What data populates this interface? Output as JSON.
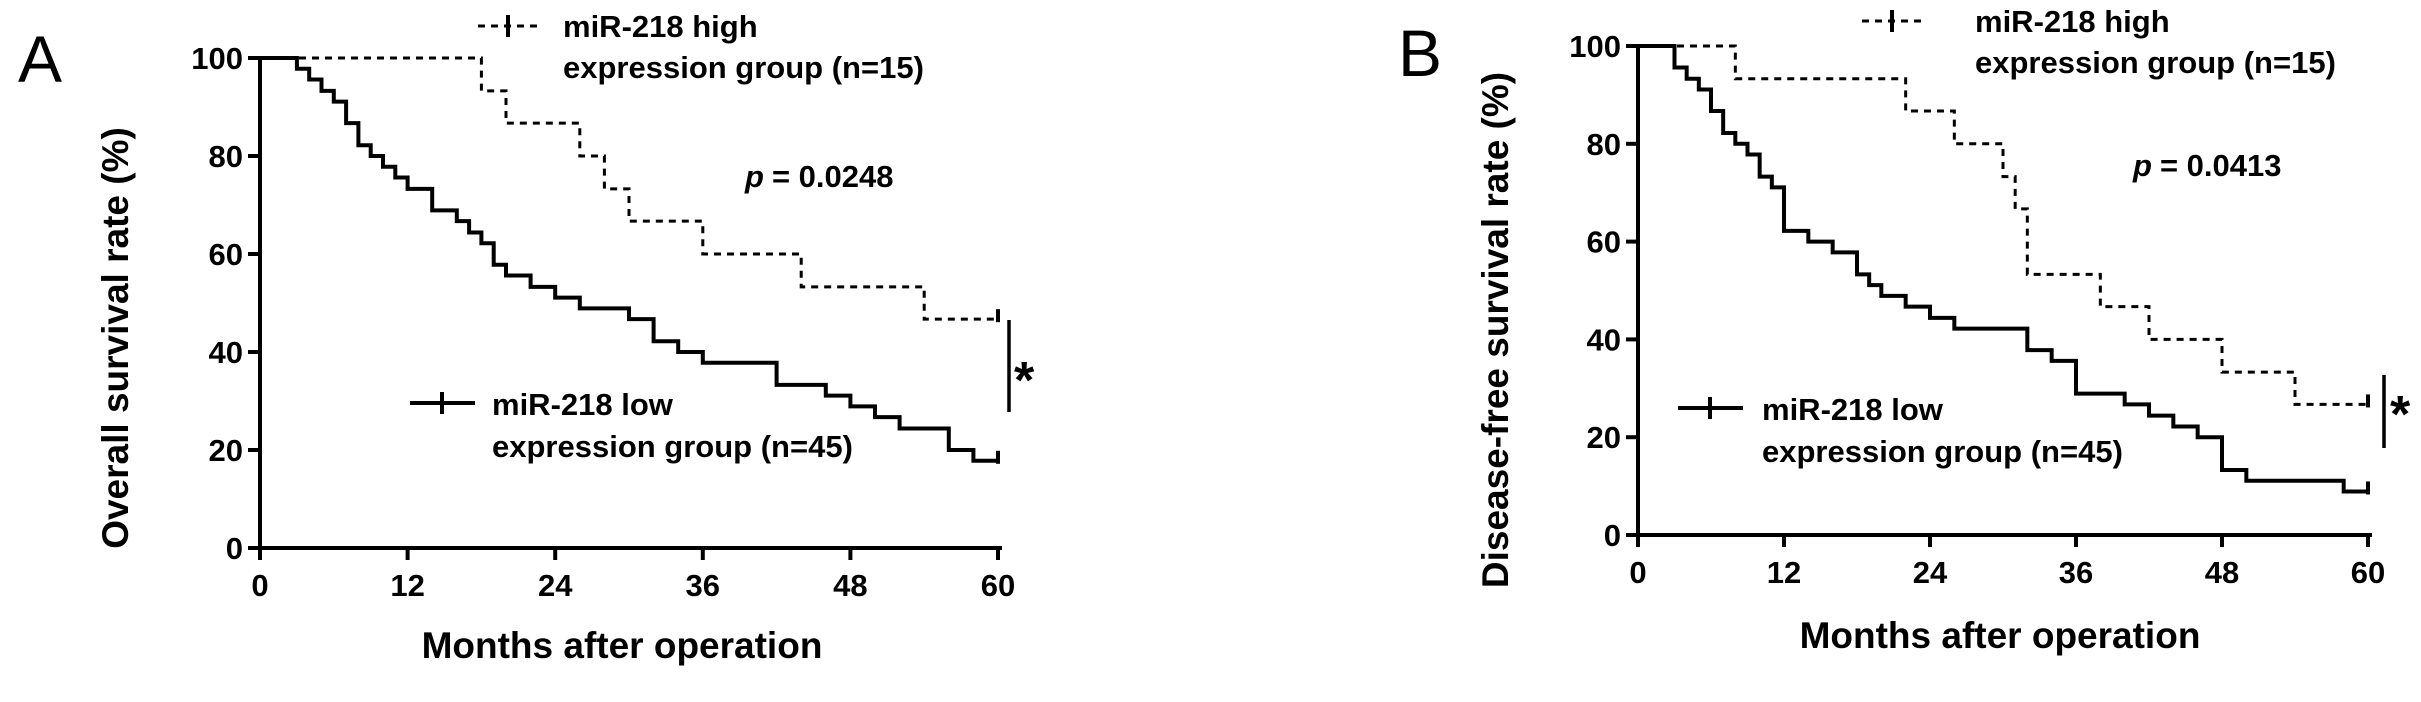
{
  "chart_data": [
    {
      "type": "line",
      "panel_label": "A",
      "xlabel": "Months after operation",
      "ylabel": "Overall survival rate (%)",
      "xlim": [
        0,
        60
      ],
      "ylim": [
        0,
        100
      ],
      "xticks": [
        0,
        12,
        24,
        36,
        48,
        60
      ],
      "yticks": [
        0,
        20,
        40,
        60,
        80,
        100
      ],
      "grid": false,
      "p_label": "p",
      "p_value": "= 0.0248",
      "significance": "*",
      "series": [
        {
          "name": "miR-218 high expression group (n=15)",
          "legend_lines": [
            "miR-218 high",
            "expression group (n=15)"
          ],
          "style": "dashed",
          "x": [
            0,
            18,
            20,
            26,
            28,
            30,
            36,
            44,
            54,
            60
          ],
          "y": [
            100,
            93.3,
            86.7,
            80,
            73.3,
            66.7,
            60,
            53.3,
            46.7,
            46.7
          ]
        },
        {
          "name": "miR-218 low expression group (n=45)",
          "legend_lines": [
            "miR-218 low",
            "expression group (n=45)"
          ],
          "style": "solid",
          "x": [
            0,
            3,
            4,
            5,
            6,
            7,
            8,
            9,
            10,
            11,
            12,
            14,
            16,
            17,
            18,
            19,
            20,
            22,
            24,
            26,
            30,
            32,
            34,
            36,
            42,
            46,
            48,
            50,
            52,
            56,
            58,
            60
          ],
          "y": [
            100,
            97.8,
            95.6,
            93.3,
            91.1,
            86.7,
            82.2,
            80,
            77.8,
            75.6,
            73.3,
            68.9,
            66.7,
            64.4,
            62.2,
            57.8,
            55.6,
            53.3,
            51.1,
            48.9,
            46.7,
            42.2,
            40,
            37.8,
            33.3,
            31.1,
            28.9,
            26.7,
            24.4,
            20,
            17.8,
            17.8
          ]
        }
      ]
    },
    {
      "type": "line",
      "panel_label": "B",
      "xlabel": "Months after operation",
      "ylabel": "Disease-free survival rate (%)",
      "xlim": [
        0,
        60
      ],
      "ylim": [
        0,
        100
      ],
      "xticks": [
        0,
        12,
        24,
        36,
        48,
        60
      ],
      "yticks": [
        0,
        20,
        40,
        60,
        80,
        100
      ],
      "grid": false,
      "p_label": "p",
      "p_value": "= 0.0413",
      "significance": "*",
      "series": [
        {
          "name": "miR-218 high expression group (n=15)",
          "legend_lines": [
            "miR-218 high",
            "expression group (n=15)"
          ],
          "style": "dashed",
          "x": [
            0,
            3,
            8,
            22,
            26,
            30,
            31,
            32,
            38,
            42,
            48,
            54,
            60
          ],
          "y": [
            100,
            100,
            93.3,
            86.7,
            80,
            73.3,
            66.7,
            53.3,
            46.7,
            40,
            33.3,
            26.7,
            26.7
          ],
          "first_drop_x": 8
        },
        {
          "name": "miR-218 low expression group (n=45)",
          "legend_lines": [
            "miR-218 low",
            "expression group (n=45)"
          ],
          "style": "solid",
          "x": [
            0,
            3,
            4,
            5,
            6,
            7,
            8,
            9,
            10,
            11,
            12,
            14,
            16,
            18,
            19,
            20,
            22,
            24,
            26,
            28,
            32,
            34,
            36,
            40,
            42,
            44,
            46,
            48,
            50,
            58,
            60
          ],
          "y": [
            100,
            95.6,
            93.3,
            91.1,
            86.7,
            82.2,
            80,
            77.8,
            73.3,
            71.1,
            62.2,
            60,
            57.8,
            53.3,
            51.1,
            48.9,
            46.7,
            44.4,
            42.2,
            42.2,
            37.8,
            35.6,
            28.9,
            26.7,
            24.4,
            22.2,
            20,
            13.3,
            11.1,
            8.9,
            8.9
          ]
        }
      ]
    }
  ]
}
